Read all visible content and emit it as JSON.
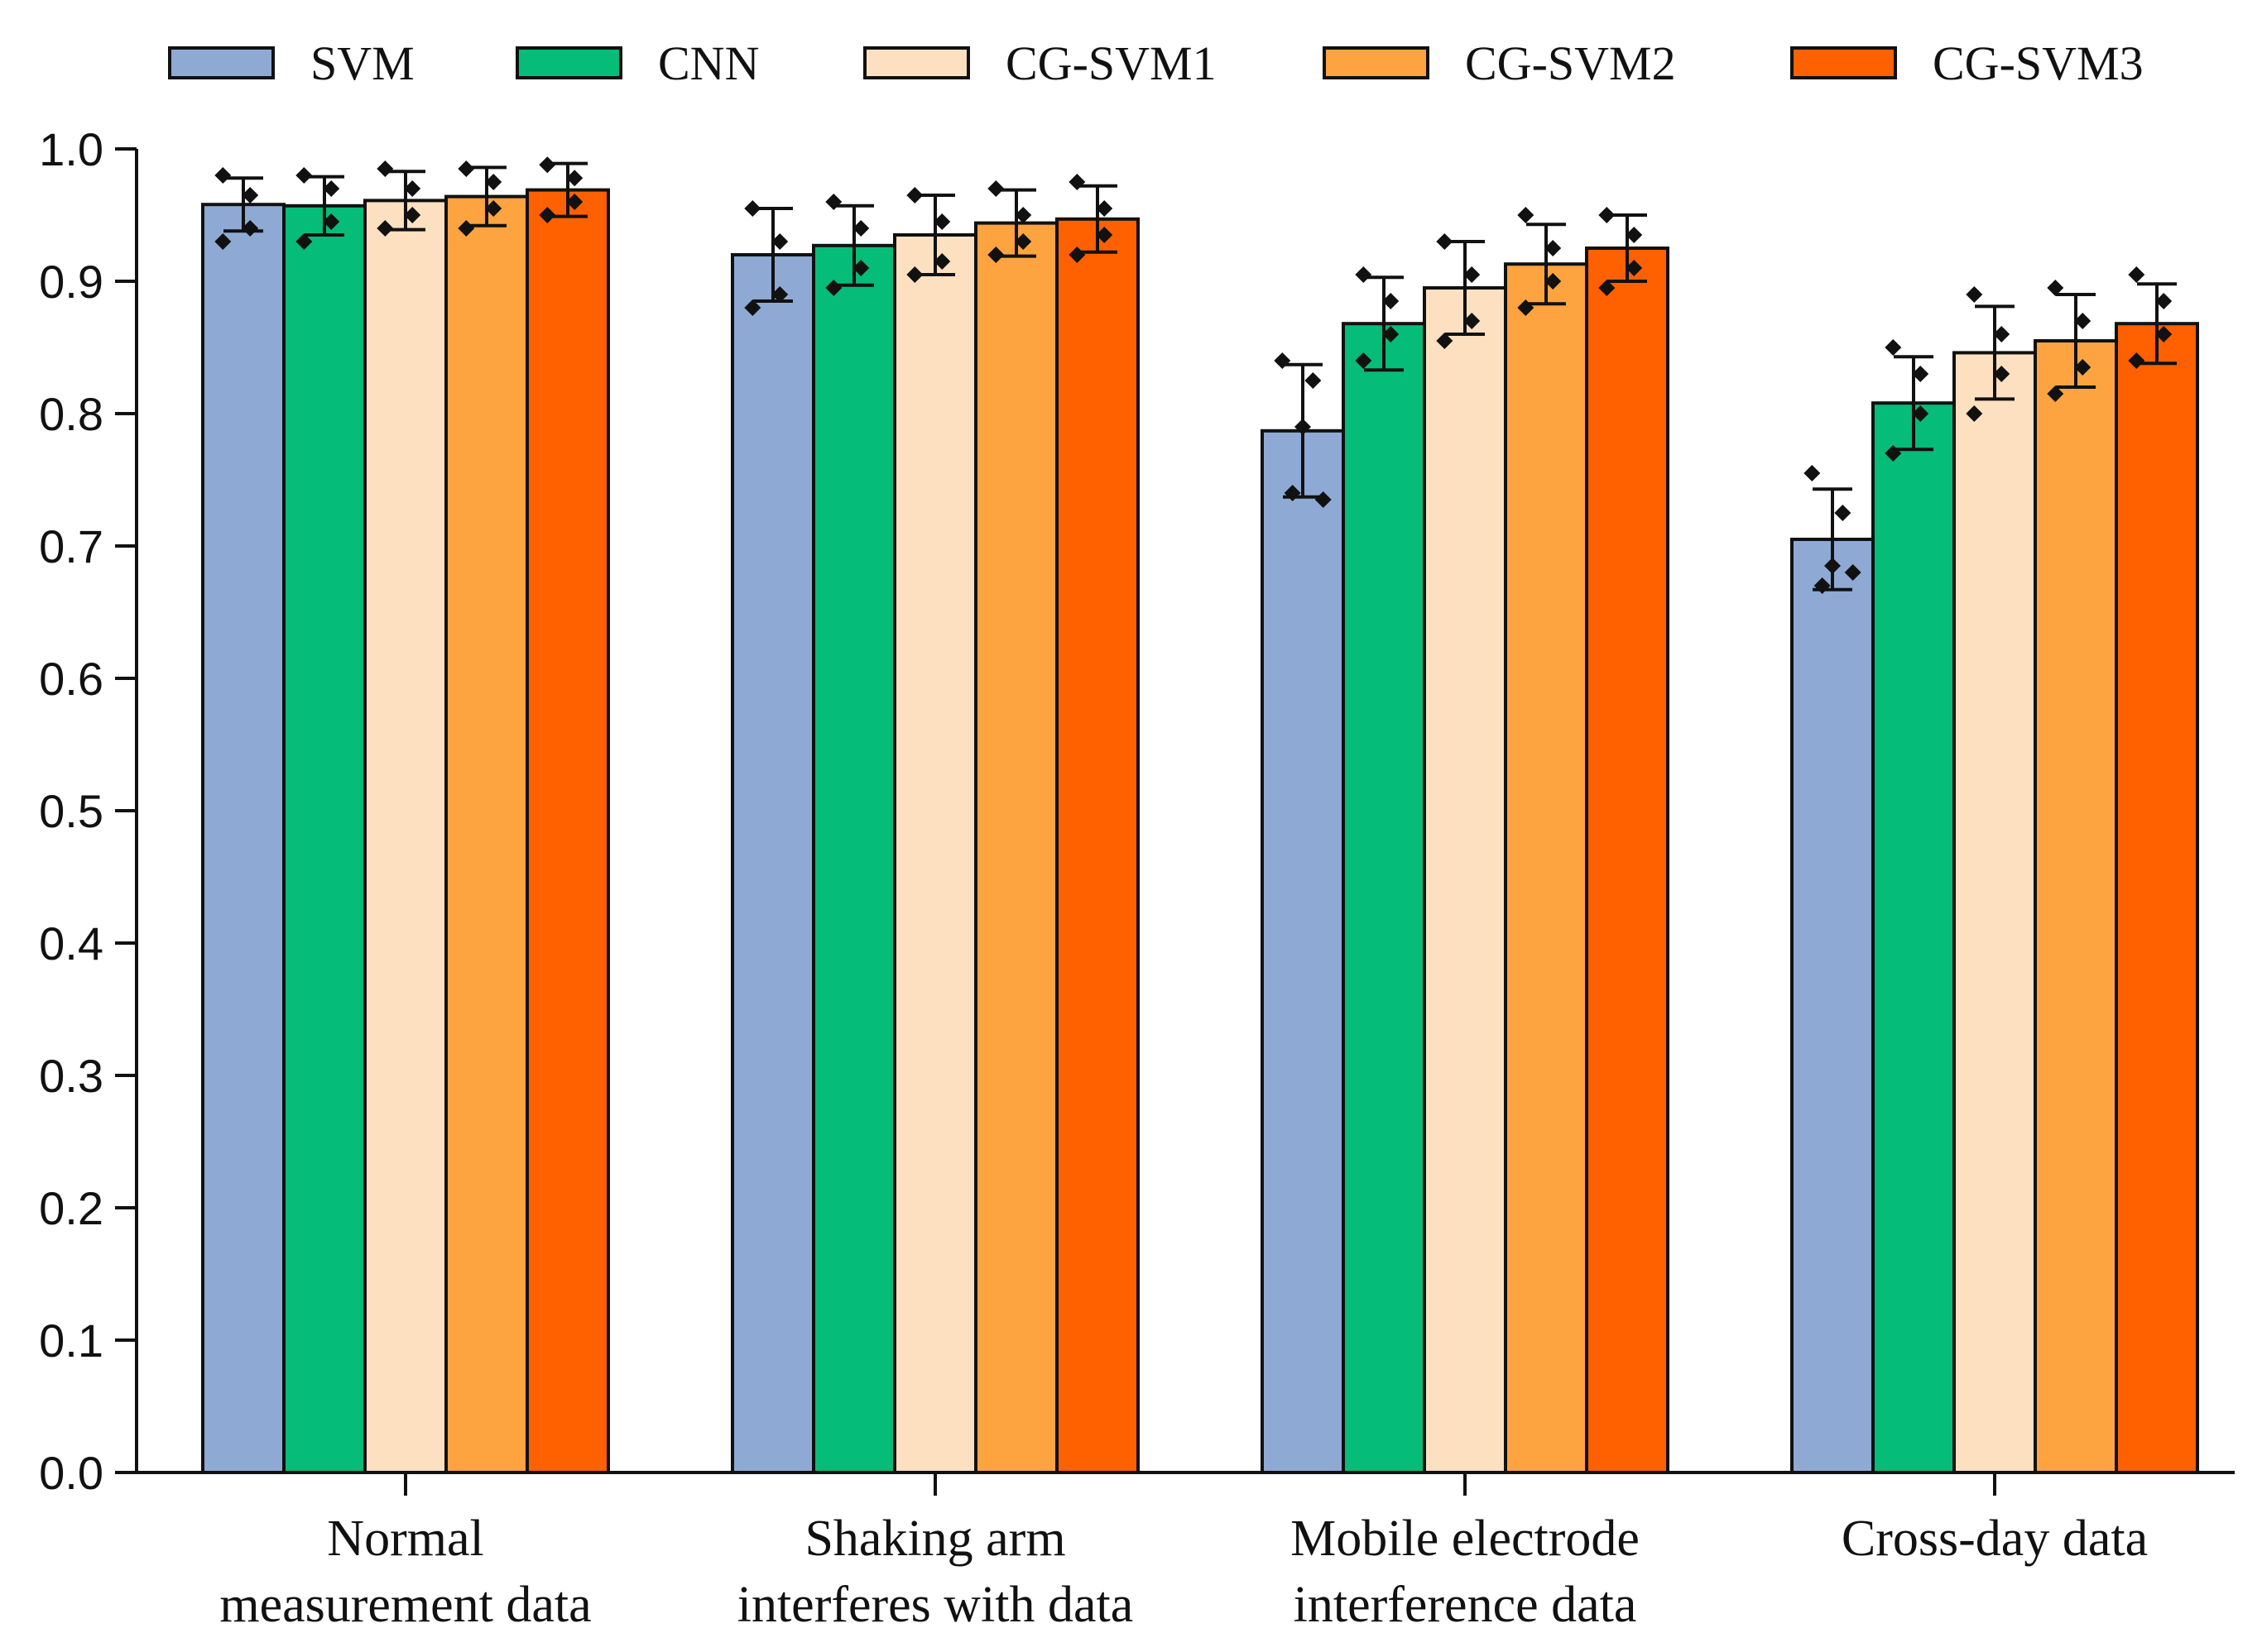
{
  "chart_data": {
    "type": "bar",
    "title": "",
    "xlabel": "",
    "ylabel": "",
    "ylim": [
      0.0,
      1.0
    ],
    "yticks": [
      "0.0",
      "0.1",
      "0.2",
      "0.3",
      "0.4",
      "0.5",
      "0.6",
      "0.7",
      "0.8",
      "0.9",
      "1.0"
    ],
    "grid": false,
    "legend_position": "top",
    "categories": [
      [
        "Normal",
        "measurement data"
      ],
      [
        "Shaking arm",
        "interferes with data"
      ],
      [
        "Mobile electrode",
        "interference data"
      ],
      [
        "Cross-day data"
      ]
    ],
    "series": [
      {
        "name": "SVM",
        "color": "#8EAAD4",
        "values": [
          0.958,
          0.92,
          0.787,
          0.705
        ],
        "error": [
          0.02,
          0.035,
          0.05,
          0.038
        ],
        "points": [
          [
            0.98,
            0.965,
            0.94,
            0.93
          ],
          [
            0.955,
            0.93,
            0.89,
            0.88
          ],
          [
            0.84,
            0.825,
            0.79,
            0.74,
            0.735
          ],
          [
            0.755,
            0.725,
            0.685,
            0.67,
            0.68
          ]
        ]
      },
      {
        "name": "CNN",
        "color": "#05BC78",
        "values": [
          0.957,
          0.927,
          0.868,
          0.808
        ],
        "error": [
          0.022,
          0.03,
          0.035,
          0.035
        ],
        "points": [
          [
            0.98,
            0.97,
            0.945,
            0.93
          ],
          [
            0.96,
            0.94,
            0.91,
            0.895
          ],
          [
            0.905,
            0.885,
            0.86,
            0.84
          ],
          [
            0.85,
            0.83,
            0.8,
            0.77
          ]
        ]
      },
      {
        "name": "CG-SVM1",
        "color": "#FDE0C0",
        "values": [
          0.961,
          0.935,
          0.895,
          0.846
        ],
        "error": [
          0.022,
          0.03,
          0.035,
          0.035
        ],
        "points": [
          [
            0.985,
            0.97,
            0.95,
            0.94
          ],
          [
            0.965,
            0.945,
            0.915,
            0.905
          ],
          [
            0.93,
            0.905,
            0.87,
            0.855
          ],
          [
            0.89,
            0.86,
            0.83,
            0.8
          ]
        ]
      },
      {
        "name": "CG-SVM2",
        "color": "#FDA340",
        "values": [
          0.964,
          0.944,
          0.913,
          0.855
        ],
        "error": [
          0.022,
          0.025,
          0.03,
          0.035
        ],
        "points": [
          [
            0.985,
            0.975,
            0.955,
            0.94
          ],
          [
            0.97,
            0.95,
            0.93,
            0.92
          ],
          [
            0.95,
            0.925,
            0.9,
            0.88
          ],
          [
            0.895,
            0.87,
            0.835,
            0.815
          ]
        ]
      },
      {
        "name": "CG-SVM3",
        "color": "#FF6000",
        "values": [
          0.969,
          0.947,
          0.925,
          0.868
        ],
        "error": [
          0.02,
          0.025,
          0.025,
          0.03
        ],
        "points": [
          [
            0.988,
            0.978,
            0.96,
            0.95
          ],
          [
            0.975,
            0.955,
            0.935,
            0.92
          ],
          [
            0.95,
            0.935,
            0.91,
            0.895
          ],
          [
            0.905,
            0.885,
            0.86,
            0.84
          ]
        ]
      }
    ]
  }
}
